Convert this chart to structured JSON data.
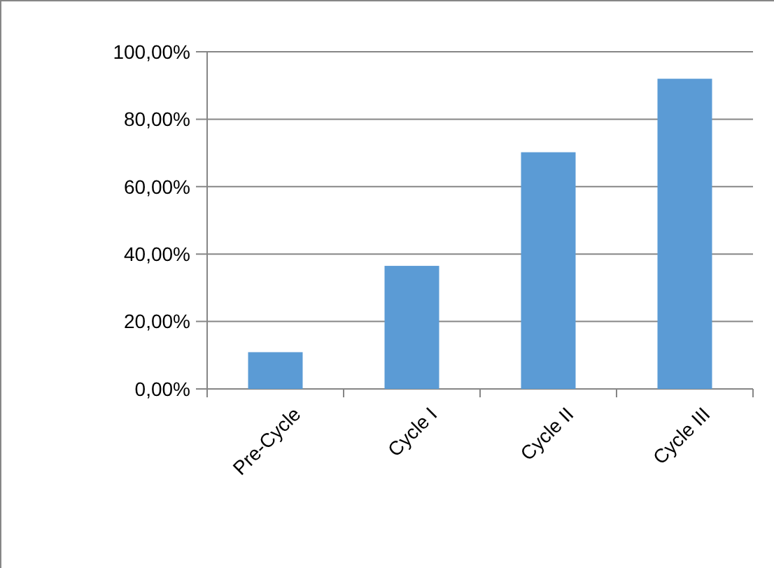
{
  "chart_data": {
    "type": "bar",
    "categories": [
      "Pre-Cycle",
      "Cycle I",
      "Cycle II",
      "Cycle III"
    ],
    "values": [
      10.9,
      36.5,
      70.2,
      92.0
    ],
    "color": "#5b9bd5",
    "ylim": [
      0,
      100
    ],
    "yticks": [
      {
        "value": 0,
        "label": "0,00%"
      },
      {
        "value": 20,
        "label": "20,00%"
      },
      {
        "value": 40,
        "label": "40,00%"
      },
      {
        "value": 60,
        "label": "60,00%"
      },
      {
        "value": 80,
        "label": "80,00%"
      },
      {
        "value": 100,
        "label": "100,00%"
      }
    ],
    "grid": "y"
  }
}
